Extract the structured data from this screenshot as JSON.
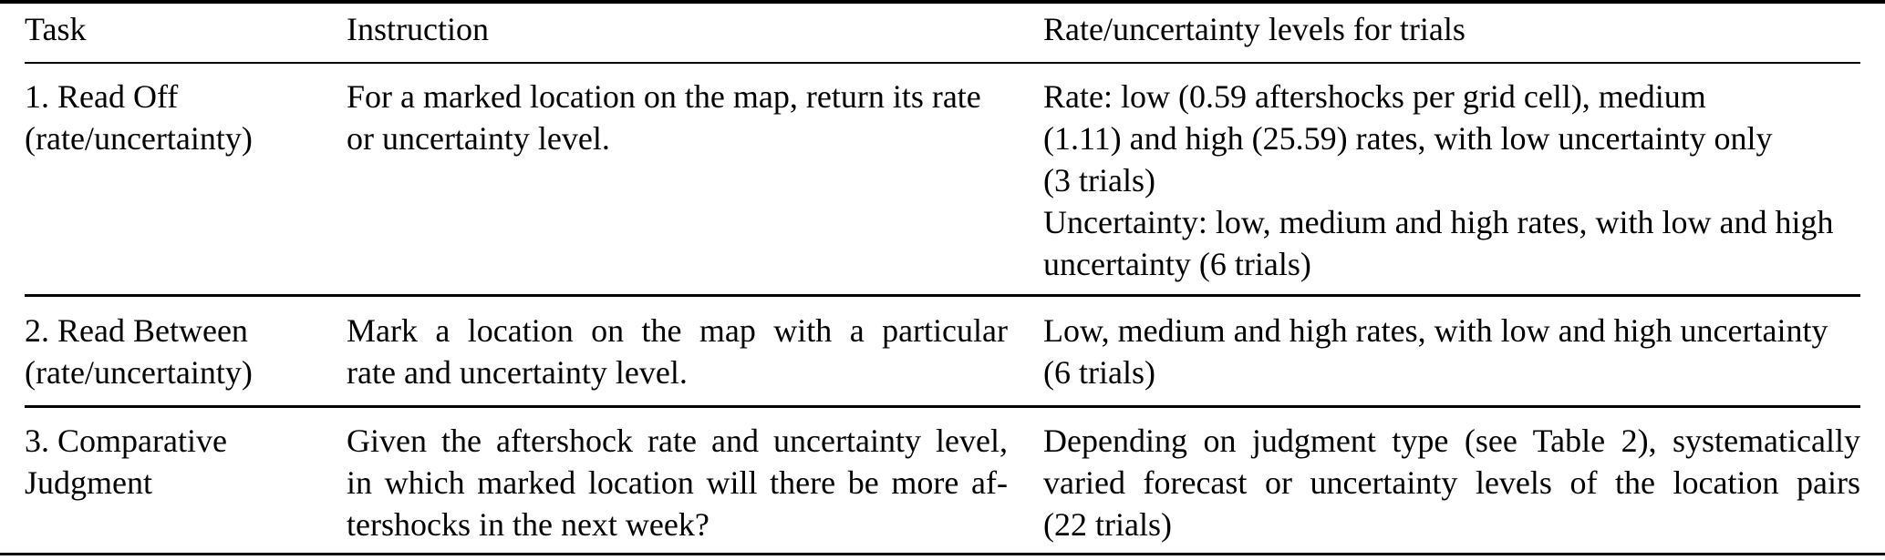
{
  "table": {
    "columns": [
      {
        "key": "task",
        "label": "Task"
      },
      {
        "key": "instruction",
        "label": "Instruction"
      },
      {
        "key": "levels",
        "label": "Rate/uncertainty levels for trials"
      }
    ],
    "rows": [
      {
        "task": {
          "lines": [
            "1. Read Off",
            "(rate/uncertainty)"
          ],
          "justify": false
        },
        "instruction": {
          "lines": [
            "For a marked location on the map, return its rate",
            "or uncertainty level."
          ],
          "justify": false
        },
        "levels": {
          "lines": [
            "Rate: low (0.59 aftershocks per grid cell), medium",
            "(1.11) and high (25.59) rates, with low uncertainty only",
            "(3 trials)",
            "Uncertainty: low, medium and high rates, with low and high",
            "uncertainty (6 trials)"
          ],
          "justify": false
        }
      },
      {
        "task": {
          "lines": [
            "2. Read Between",
            "(rate/uncertainty)"
          ],
          "justify": false
        },
        "instruction": {
          "lines": [
            "Mark a location on the map with a particular",
            "rate and uncertainty level."
          ],
          "justify": true
        },
        "levels": {
          "lines": [
            "Low, medium and high rates, with low and high uncertainty",
            "(6 trials)"
          ],
          "justify": false
        }
      },
      {
        "task": {
          "lines": [
            "3. Comparative",
            "Judgment"
          ],
          "justify": false
        },
        "instruction": {
          "lines": [
            "Given the aftershock rate and uncertainty level,",
            "in which marked location will there be more af-",
            "tershocks in the next week?"
          ],
          "justify": true
        },
        "levels": {
          "lines": [
            "Depending on judgment type (see Table 2), systematically",
            "varied forecast or uncertainty levels of the location pairs",
            "(22 trials)"
          ],
          "justify": true
        }
      }
    ]
  },
  "colors": {
    "background": "#ffffff",
    "text": "#000000",
    "rule": "#000000"
  }
}
